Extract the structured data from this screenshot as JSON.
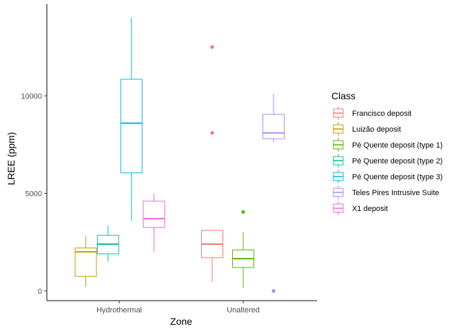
{
  "chart_data": {
    "type": "boxplot",
    "title": "",
    "xlabel": "Zone",
    "ylabel": "LREE (ppm)",
    "categories": [
      "Hydrothermal",
      "Unaltered"
    ],
    "ylim": [
      -500,
      14700
    ],
    "yticks": [
      0,
      5000,
      10000
    ],
    "grid": false,
    "legend_position": "right",
    "legend": {
      "title": "Class",
      "entries": [
        "Francisco deposit",
        "Luizão deposit",
        "Pé Quente deposit (type 1)",
        "Pé Quente deposit (type 2)",
        "Pé Quente deposit (type 3)",
        "Teles Pires Intrusive Suite",
        "X1 deposit"
      ]
    },
    "series": [
      {
        "name": "Francisco deposit",
        "color": "#F8766D",
        "boxes": [
          {
            "category": "Unaltered",
            "min": 450,
            "q1": 1700,
            "median": 2400,
            "q3": 3100,
            "max": 3100,
            "outliers": [
              8100,
              12500
            ]
          }
        ]
      },
      {
        "name": "Luizão deposit",
        "color": "#C49A00",
        "boxes": [
          {
            "category": "Hydrothermal",
            "min": 200,
            "q1": 750,
            "median": 2000,
            "q3": 2200,
            "max": 2800,
            "outliers": []
          }
        ]
      },
      {
        "name": "Pé Quente deposit (type 1)",
        "color": "#53B400",
        "boxes": [
          {
            "category": "Unaltered",
            "min": 150,
            "q1": 1200,
            "median": 1650,
            "q3": 2100,
            "max": 3000,
            "outliers": [
              4050
            ]
          }
        ]
      },
      {
        "name": "Pé Quente deposit (type 2)",
        "color": "#00C094",
        "boxes": [
          {
            "category": "Hydrothermal",
            "min": 1500,
            "q1": 1900,
            "median": 2400,
            "q3": 2850,
            "max": 3350,
            "outliers": []
          }
        ]
      },
      {
        "name": "Pé Quente deposit (type 3)",
        "color": "#00B6EB",
        "boxes": [
          {
            "category": "Hydrothermal",
            "min": 3600,
            "q1": 6050,
            "median": 8600,
            "q3": 10850,
            "max": 14000,
            "outliers": []
          }
        ]
      },
      {
        "name": "Teles Pires Intrusive Suite",
        "color": "#A58AFF",
        "boxes": [
          {
            "category": "Unaltered",
            "min": 7600,
            "q1": 7800,
            "median": 8100,
            "q3": 9050,
            "max": 10100,
            "outliers": [
              0
            ]
          }
        ]
      },
      {
        "name": "X1 deposit",
        "color": "#FB61D7",
        "boxes": [
          {
            "category": "Hydrothermal",
            "min": 2000,
            "q1": 3250,
            "median": 3700,
            "q3": 4600,
            "max": 5000,
            "outliers": []
          }
        ]
      }
    ]
  }
}
